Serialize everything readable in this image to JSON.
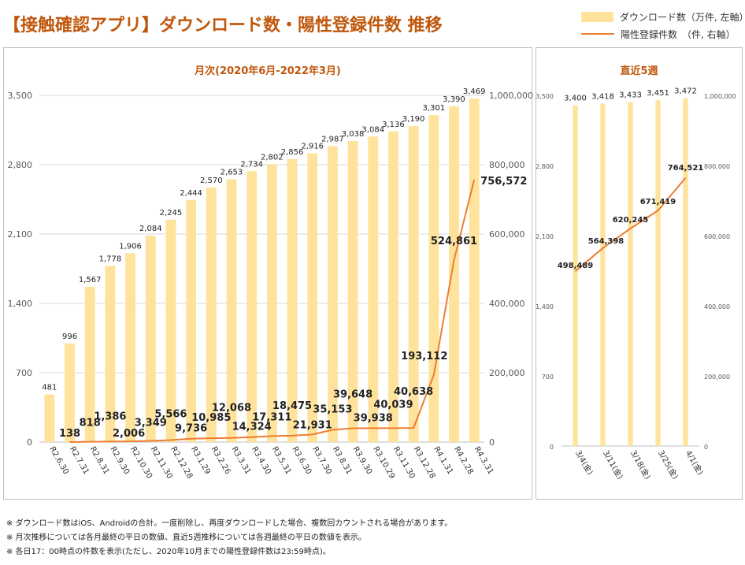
{
  "title": "【接触確認アプリ】ダウンロード数・陽性登録件数 推移",
  "legend": [
    {
      "label": "ダウンロード数（万件, 左軸）",
      "kind": "bar"
    },
    {
      "label": "陽性登録件数　（件, 右軸）",
      "kind": "line"
    }
  ],
  "colors": {
    "bar": "#ffe39c",
    "line": "#ed7d31",
    "title": "#c0570b"
  },
  "notes": [
    "※ ダウンロード数はiOS、Androidの合計。一度削除し、再度ダウンロードした場合、複数回カウントされる場合があります。",
    "※ 月次推移については各月最終の平日の数値、直近5週推移については各週最終の平日の数値を表示。",
    "※ 各日17：00時点の件数を表示(ただし、2020年10月までの陽性登録件数は23:59時点)。"
  ],
  "chart_data": [
    {
      "panel_title": "月次(2020年6月-2022年3月)",
      "type": "bar",
      "categories": [
        "R2.6.30",
        "R2.7.31",
        "R2.8.31",
        "R2.9.30",
        "R2.10.30",
        "R2.11.30",
        "R2.12.28",
        "R3.1.29",
        "R3.2.26",
        "R3.3.31",
        "R3.4.30",
        "R3.5.31",
        "R3.6.30",
        "R3.7.30",
        "R3.8.31",
        "R3.9.30",
        "R3.10.29",
        "R3.11.30",
        "R3.12.28",
        "R4.1.31",
        "R4.2.28",
        "R4.3.31"
      ],
      "series": [
        {
          "name": "ダウンロード数（万件, 左軸）",
          "type": "bar",
          "axis": "left",
          "values": [
            481,
            996,
            1567,
            1778,
            1906,
            2084,
            2245,
            2444,
            2570,
            2653,
            2734,
            2802,
            2856,
            2916,
            2987,
            3038,
            3084,
            3136,
            3190,
            3301,
            3390,
            3469
          ],
          "labels": [
            "481",
            "996",
            "1,567",
            "1,778",
            "1,906",
            "2,084",
            "2,245",
            "2,444",
            "2,570",
            "2,653",
            "2,734",
            "2,802",
            "2,856",
            "2,916",
            "2,987",
            "3,038",
            "3,084",
            "3,136",
            "3,190",
            "3,301",
            "3,390",
            "3,469"
          ]
        },
        {
          "name": "陽性登録件数　（件, 右軸）",
          "type": "line",
          "axis": "right",
          "values": [
            null,
            138,
            818,
            1386,
            2006,
            3349,
            5566,
            9736,
            10985,
            12068,
            14324,
            17311,
            18475,
            21931,
            35153,
            39648,
            39938,
            40039,
            40638,
            193112,
            524861,
            756572
          ],
          "labels": [
            "",
            "138",
            "818",
            "1,386",
            "2,006",
            "3,349",
            "5,566",
            "9,736",
            "10,985",
            "12,068",
            "14,324",
            "17,311",
            "18,475",
            "21,931",
            "35,153",
            "39,648",
            "39,938",
            "40,039",
            "40,638",
            "193,112",
            "524,861",
            "756,572"
          ]
        }
      ],
      "left_axis": {
        "ticks": [
          0,
          700,
          1400,
          2100,
          2800,
          3500
        ],
        "tick_labels": [
          "0",
          "700",
          "1,400",
          "2,100",
          "2,800",
          "3,500"
        ],
        "ylim": [
          0,
          3500
        ]
      },
      "right_axis": {
        "ticks": [
          0,
          200000,
          400000,
          600000,
          800000,
          1000000
        ],
        "tick_labels": [
          "0",
          "200,000",
          "400,000",
          "600,000",
          "800,000",
          "1,000,000"
        ],
        "ylim": [
          0,
          1000000
        ]
      },
      "grid": true
    },
    {
      "panel_title": "直近5週",
      "type": "bar",
      "categories": [
        "3/4(金)",
        "3/11(金)",
        "3/18(金)",
        "3/25(金)",
        "4/1(金)"
      ],
      "series": [
        {
          "name": "ダウンロード数（万件, 左軸）",
          "type": "bar",
          "axis": "left",
          "values": [
            3400,
            3418,
            3433,
            3451,
            3472
          ],
          "labels": [
            "3,400",
            "3,418",
            "3,433",
            "3,451",
            "3,472"
          ]
        },
        {
          "name": "陽性登録件数　（件, 右軸）",
          "type": "line",
          "axis": "right",
          "values": [
            498489,
            564398,
            620245,
            671419,
            764521
          ],
          "labels": [
            "498,489",
            "564,398",
            "620,245",
            "671,419",
            "764,521"
          ]
        }
      ],
      "left_axis": {
        "ticks": [
          0,
          700,
          1400,
          2100,
          2800,
          3500
        ],
        "tick_labels": [
          "0",
          "700",
          "1,400",
          "2,100",
          "2,800",
          "3,500"
        ],
        "ylim": [
          0,
          3500
        ]
      },
      "right_axis": {
        "ticks": [
          0,
          200000,
          400000,
          600000,
          800000,
          1000000
        ],
        "tick_labels": [
          "0",
          "200,000",
          "400,000",
          "600,000",
          "800,000",
          "1,000,000"
        ],
        "ylim": [
          0,
          1000000
        ]
      },
      "grid": false
    }
  ]
}
